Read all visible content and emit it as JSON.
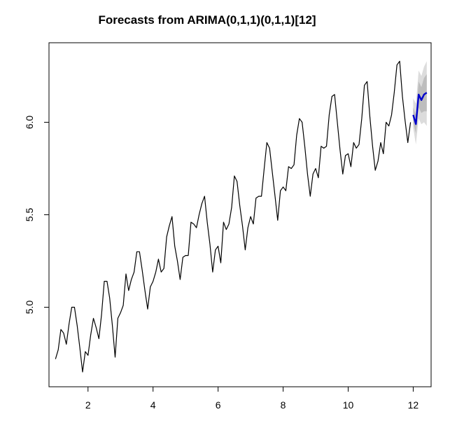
{
  "chart_data": {
    "type": "line",
    "title": "Forecasts from ARIMA(0,1,1)(0,1,1)[12]",
    "xlabel": "",
    "ylabel": "",
    "xlim": [
      0.8,
      12.55
    ],
    "ylim": [
      4.57,
      6.43
    ],
    "x_ticks": [
      {
        "value": 2,
        "label": "2"
      },
      {
        "value": 4,
        "label": "4"
      },
      {
        "value": 6,
        "label": "6"
      },
      {
        "value": 8,
        "label": "8"
      },
      {
        "value": 10,
        "label": "10"
      },
      {
        "value": 12,
        "label": "12"
      }
    ],
    "y_ticks": [
      {
        "value": 5.0,
        "label": "5.0"
      },
      {
        "value": 5.5,
        "label": "5.5"
      },
      {
        "value": 6.0,
        "label": "6.0"
      }
    ],
    "grid": false,
    "legend": "none",
    "colors": {
      "history": "#000000",
      "forecast": "#0000cc",
      "band_outer": "#dcdcdc",
      "band_inner": "#bdbdbd"
    },
    "series": [
      {
        "start": 1,
        "step": 0.0833333,
        "values": [
          4.72,
          4.77,
          4.88,
          4.86,
          4.8,
          4.91,
          5.0,
          5.0,
          4.9,
          4.78,
          4.65,
          4.76,
          4.74,
          4.85,
          4.94,
          4.89,
          4.83,
          4.96,
          5.14,
          5.14,
          5.05,
          4.9,
          4.73,
          4.94,
          4.97,
          5.01,
          5.18,
          5.09,
          5.15,
          5.19,
          5.3,
          5.3,
          5.2,
          5.09,
          4.99,
          5.11,
          5.14,
          5.19,
          5.26,
          5.19,
          5.21,
          5.38,
          5.44,
          5.49,
          5.33,
          5.25,
          5.15,
          5.27,
          5.28,
          5.28,
          5.46,
          5.45,
          5.43,
          5.5,
          5.56,
          5.6,
          5.46,
          5.34,
          5.19,
          5.31,
          5.33,
          5.24,
          5.46,
          5.42,
          5.45,
          5.54,
          5.71,
          5.68,
          5.55,
          5.44,
          5.31,
          5.43,
          5.49,
          5.45,
          5.59,
          5.6,
          5.6,
          5.75,
          5.89,
          5.86,
          5.73,
          5.6,
          5.47,
          5.63,
          5.65,
          5.63,
          5.76,
          5.75,
          5.77,
          5.93,
          6.02,
          6.0,
          5.87,
          5.72,
          5.6,
          5.72,
          5.75,
          5.7,
          5.87,
          5.86,
          5.87,
          6.04,
          6.14,
          6.15,
          6.0,
          5.85,
          5.72,
          5.82,
          5.83,
          5.76,
          5.89,
          5.86,
          5.88,
          6.02,
          6.2,
          6.22,
          6.03,
          5.87,
          5.74,
          5.79,
          5.89,
          5.83,
          6.0,
          5.98,
          6.04,
          6.16,
          6.31,
          6.33,
          6.14,
          6.01,
          5.89,
          6.0
        ]
      },
      {
        "start": 12.0,
        "step": 0.0833333,
        "values": [
          6.04,
          5.99,
          6.15,
          6.12,
          6.15,
          6.16
        ],
        "lower_80": [
          6.0,
          5.94,
          6.08,
          6.05,
          6.06,
          6.06
        ],
        "upper_80": [
          6.08,
          6.04,
          6.22,
          6.19,
          6.24,
          6.26
        ],
        "lower_95": [
          5.97,
          5.88,
          6.02,
          5.99,
          6.0,
          5.98
        ],
        "upper_95": [
          6.13,
          6.1,
          6.28,
          6.25,
          6.3,
          6.33
        ]
      }
    ]
  }
}
